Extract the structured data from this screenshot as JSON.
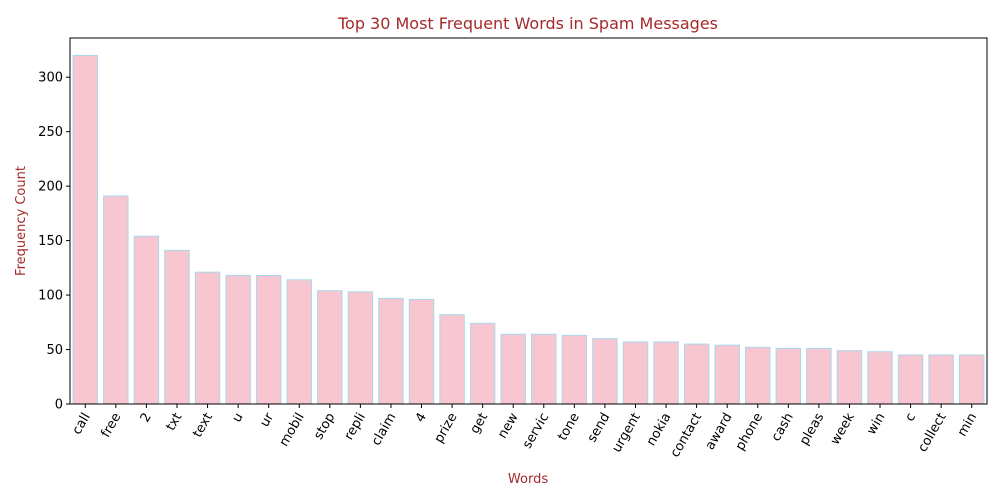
{
  "chart_data": {
    "type": "bar",
    "title": "Top 30 Most Frequent Words in Spam Messages",
    "xlabel": "Words",
    "ylabel": "Frequency Count",
    "categories": [
      "call",
      "free",
      "2",
      "txt",
      "text",
      "u",
      "ur",
      "mobil",
      "stop",
      "repli",
      "claim",
      "4",
      "prize",
      "get",
      "new",
      "servic",
      "tone",
      "send",
      "urgent",
      "nokia",
      "contact",
      "award",
      "phone",
      "cash",
      "pleas",
      "week",
      "win",
      "c",
      "collect",
      "min"
    ],
    "values": [
      320,
      191,
      154,
      141,
      121,
      118,
      118,
      114,
      104,
      103,
      97,
      96,
      82,
      74,
      64,
      64,
      63,
      60,
      57,
      57,
      55,
      54,
      52,
      51,
      51,
      49,
      48,
      45,
      45,
      45
    ],
    "ylim": [
      0,
      336
    ],
    "yticks": [
      0,
      50,
      100,
      150,
      200,
      250,
      300
    ],
    "grid": false,
    "legend": "none",
    "colors": {
      "bar_fill": "#f7c6d0",
      "bar_edge": "#a8d8ea",
      "title": "#a52a2a",
      "axis_label": "#a52a2a",
      "axis": "#000000"
    }
  }
}
